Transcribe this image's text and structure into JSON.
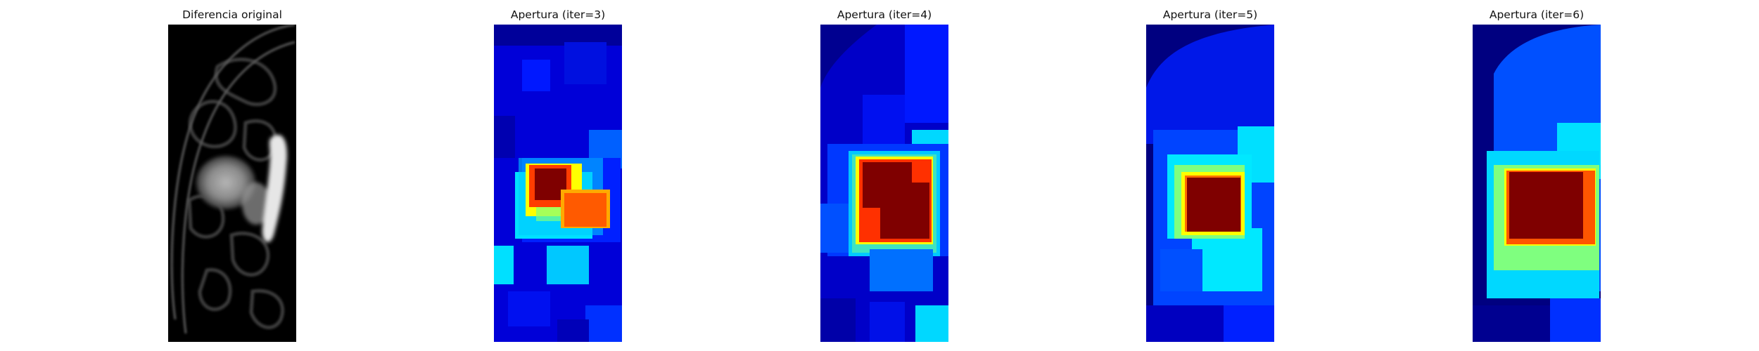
{
  "figure": {
    "panels": [
      {
        "title": "Diferencia original",
        "kind": "grayscale"
      },
      {
        "title": "Apertura (iter=3)",
        "kind": "heatmap",
        "iter": 3
      },
      {
        "title": "Apertura (iter=4)",
        "kind": "heatmap",
        "iter": 4
      },
      {
        "title": "Apertura (iter=5)",
        "kind": "heatmap",
        "iter": 5
      },
      {
        "title": "Apertura (iter=6)",
        "kind": "heatmap",
        "iter": 6
      }
    ],
    "colormap": "jet",
    "colors": {
      "dark_blue": "#00007f",
      "blue": "#0000ff",
      "azure": "#0050ff",
      "cyan": "#00e0ff",
      "green": "#7fff7f",
      "yellow": "#ffff00",
      "orange": "#ff5a00",
      "dark_red": "#7f0000"
    }
  }
}
